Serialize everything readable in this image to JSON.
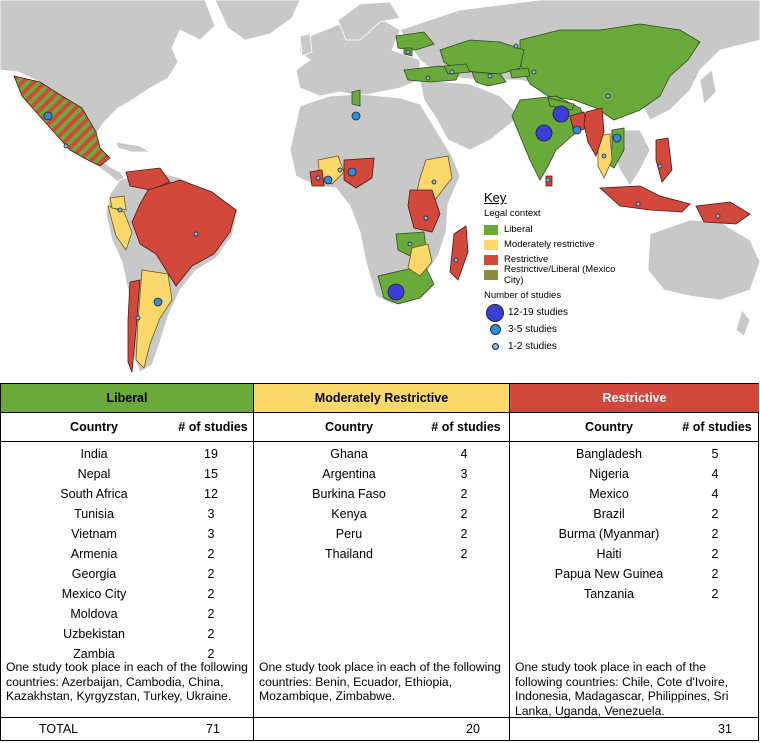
{
  "key": {
    "title": "Key",
    "legal_context_title": "Legal context",
    "legal_items": [
      {
        "label": "Liberal",
        "color": "#6aaa3a"
      },
      {
        "label": "Moderately restrictive",
        "color": "#fcd86b"
      },
      {
        "label": "Restrictive",
        "color": "#d2483a"
      },
      {
        "label": "Restrictive/Liberal (Mexico City)",
        "color": "#8c8c3c"
      }
    ],
    "studies_title": "Number of studies",
    "studies_items": [
      {
        "label": "12-19 studies",
        "color": "#3a3fd8"
      },
      {
        "label": "3-5 studies",
        "color": "#2f8fd6"
      },
      {
        "label": "1-2 studies",
        "color": "#8fb8d8"
      }
    ]
  },
  "colors": {
    "land": "#c8c8c8",
    "water": "#ffffff",
    "liberal": "#6aaa3a",
    "moderate": "#fcd86b",
    "restrictive": "#d2483a"
  },
  "table": {
    "country_header": "Country",
    "studies_header": "# of studies",
    "total_label": "TOTAL",
    "columns": [
      {
        "title": "Liberal",
        "rows": [
          {
            "country": "India",
            "n": "19"
          },
          {
            "country": "Nepal",
            "n": "15"
          },
          {
            "country": "South Africa",
            "n": "12"
          },
          {
            "country": "Tunisia",
            "n": "3"
          },
          {
            "country": "Vietnam",
            "n": "3"
          },
          {
            "country": "Armenia",
            "n": "2"
          },
          {
            "country": "Georgia",
            "n": "2"
          },
          {
            "country": "Mexico City",
            "n": "2"
          },
          {
            "country": "Moldova",
            "n": "2"
          },
          {
            "country": "Uzbekistan",
            "n": "2"
          },
          {
            "country": "Zambia",
            "n": "2"
          }
        ],
        "note": "One study took place in each of the following countries: Azerbaijan, Cambodia, China, Kazakhstan, Kyrgyzstan, Turkey, Ukraine.",
        "total": "71"
      },
      {
        "title": "Moderately Restrictive",
        "rows": [
          {
            "country": "Ghana",
            "n": "4"
          },
          {
            "country": "Argentina",
            "n": "3"
          },
          {
            "country": "Burkina Faso",
            "n": "2"
          },
          {
            "country": "Kenya",
            "n": "2"
          },
          {
            "country": "Peru",
            "n": "2"
          },
          {
            "country": "Thailand",
            "n": "2"
          }
        ],
        "note": "One study took place in each of the following countries: Benin, Ecuador, Ethiopia, Mozambique, Zimbabwe.",
        "total": "20"
      },
      {
        "title": "Restrictive",
        "rows": [
          {
            "country": "Bangladesh",
            "n": "5"
          },
          {
            "country": "Nigeria",
            "n": "4"
          },
          {
            "country": "Mexico",
            "n": "4"
          },
          {
            "country": "Brazil",
            "n": "2"
          },
          {
            "country": "Burma (Myanmar)",
            "n": "2"
          },
          {
            "country": "Haiti",
            "n": "2"
          },
          {
            "country": "Papua New Guinea",
            "n": "2"
          },
          {
            "country": "Tanzania",
            "n": "2"
          }
        ],
        "note": "One study took place in each of the following countries: Chile, Cote d'Ivoire, Indonesia, Madagascar, Philippines, Sri Lanka, Uganda, Venezuela.",
        "total": "31"
      }
    ]
  }
}
